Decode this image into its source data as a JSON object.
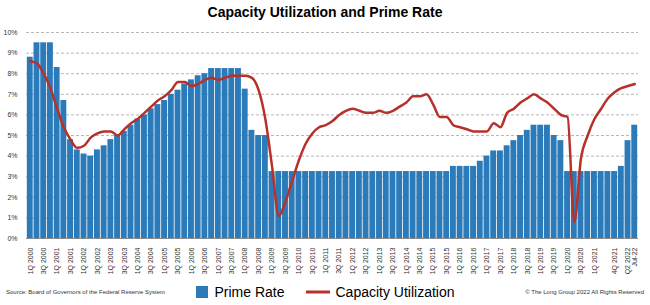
{
  "chart_data": {
    "type": "bar",
    "title": "Capacity Utilization and Prime Rate",
    "source": "Source: Board of Governors of the Federal Reserve System",
    "credit": "© The Long Group 2022 All Rights Reserved",
    "categories": [
      "1Q 2000",
      null,
      "3Q 2000",
      null,
      "1Q 2001",
      null,
      "3Q 2001",
      null,
      "1Q 2002",
      null,
      "3Q 2002",
      null,
      "1Q 2003",
      null,
      "3Q 2003",
      null,
      "1Q 2004",
      null,
      "3Q 2004",
      null,
      "1Q 2005",
      null,
      "3Q 2005",
      null,
      "1Q 2006",
      null,
      "3Q 2006",
      null,
      "1Q 2007",
      null,
      "3Q 2007",
      null,
      "1Q 2008",
      null,
      "3Q 2008",
      null,
      "1Q 2009",
      null,
      "3Q 2009",
      null,
      "1Q 2010",
      null,
      "3Q 2010",
      null,
      "1Q 2011",
      null,
      "3Q 2011",
      null,
      "1Q 2012",
      null,
      "3Q 2012",
      null,
      "1Q 2013",
      null,
      "3Q 2013",
      null,
      "1Q 2014",
      null,
      "3Q 2014",
      null,
      "1Q 2015",
      null,
      "3Q 2015",
      null,
      "1Q 2016",
      null,
      "3Q 2016",
      null,
      "1Q 2017",
      null,
      "3Q 2017",
      null,
      "1Q 2018",
      null,
      "3Q 2018",
      null,
      "1Q 2019",
      null,
      "3Q 2019",
      null,
      "1Q 2020",
      null,
      "3Q 2020",
      null,
      "1Q 2021",
      null,
      null,
      "4Q 2021",
      null,
      "Q2 2022",
      "Jul-22"
    ],
    "series": [
      {
        "name": "Prime Rate",
        "type": "bar",
        "color": "#2b7bba",
        "values": [
          8.8,
          9.5,
          9.5,
          9.5,
          8.3,
          6.7,
          4.8,
          4.3,
          4.1,
          4.0,
          4.3,
          4.5,
          4.8,
          5.0,
          5.2,
          5.5,
          5.8,
          6.0,
          6.3,
          6.5,
          6.7,
          7.0,
          7.2,
          7.5,
          7.7,
          7.9,
          8.0,
          8.25,
          8.25,
          8.25,
          8.25,
          8.25,
          7.25,
          5.25,
          5.0,
          5.0,
          3.25,
          3.25,
          3.25,
          3.25,
          3.25,
          3.25,
          3.25,
          3.25,
          3.25,
          3.25,
          3.25,
          3.25,
          3.25,
          3.25,
          3.25,
          3.25,
          3.25,
          3.25,
          3.25,
          3.25,
          3.25,
          3.25,
          3.25,
          3.25,
          3.25,
          3.25,
          3.25,
          3.5,
          3.5,
          3.5,
          3.5,
          3.75,
          4.0,
          4.25,
          4.25,
          4.5,
          4.75,
          5.0,
          5.25,
          5.5,
          5.5,
          5.5,
          5.0,
          4.75,
          3.25,
          3.25,
          3.25,
          3.25,
          3.25,
          3.25,
          3.25,
          3.25,
          3.5,
          4.75,
          5.5
        ]
      },
      {
        "name": "Capacity Utilization",
        "type": "line",
        "color": "#b8302a",
        "values": [
          8.6,
          8.5,
          8.0,
          7.3,
          6.3,
          5.4,
          4.8,
          4.4,
          4.5,
          4.9,
          5.1,
          5.2,
          5.2,
          5.0,
          5.3,
          5.6,
          5.8,
          6.1,
          6.4,
          6.7,
          6.9,
          7.2,
          7.6,
          7.6,
          7.4,
          7.5,
          7.7,
          7.8,
          7.7,
          7.8,
          7.9,
          7.9,
          7.9,
          7.8,
          7.2,
          5.8,
          3.5,
          1.1,
          1.8,
          2.8,
          3.8,
          4.6,
          5.1,
          5.4,
          5.5,
          5.7,
          6.0,
          6.2,
          6.3,
          6.2,
          6.1,
          6.1,
          6.2,
          6.1,
          6.2,
          6.4,
          6.6,
          6.9,
          6.9,
          7.0,
          6.5,
          5.9,
          5.9,
          5.5,
          5.4,
          5.3,
          5.2,
          5.2,
          5.2,
          5.6,
          5.4,
          6.1,
          6.3,
          6.6,
          6.8,
          7.0,
          6.8,
          6.6,
          6.3,
          6.0,
          5.9,
          0.8,
          3.9,
          5.0,
          5.8,
          6.3,
          6.8,
          7.1,
          7.3,
          7.4,
          7.5
        ]
      }
    ],
    "ylim": [
      0,
      10
    ],
    "yticks": [
      {
        "value": 0,
        "label": "0%"
      },
      {
        "value": 1,
        "label": "1%"
      },
      {
        "value": 2,
        "label": "2%"
      },
      {
        "value": 3,
        "label": "3%"
      },
      {
        "value": 4,
        "label": "4%"
      },
      {
        "value": 5,
        "label": "5%"
      },
      {
        "value": 6,
        "label": "6%"
      },
      {
        "value": 7,
        "label": "7%"
      },
      {
        "value": 8,
        "label": "8%"
      },
      {
        "value": 9,
        "label": "9%"
      },
      {
        "value": 10,
        "label": "10%"
      }
    ],
    "grid": true,
    "legend": "bottom"
  }
}
